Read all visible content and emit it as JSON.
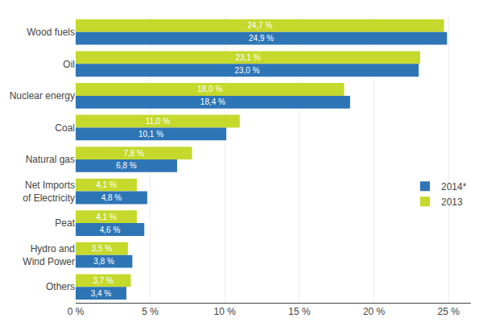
{
  "chart_data": {
    "type": "bar",
    "orientation": "horizontal",
    "categories": [
      "Wood fuels",
      "Oil",
      "Nuclear energy",
      "Coal",
      "Natural gas",
      "Net Imports\nof Electricity",
      "Peat",
      "Hydro and\nWind Power",
      "Others"
    ],
    "series": [
      {
        "name": "2014*",
        "color": "#2E75B6",
        "values": [
          24.9,
          23.0,
          18.4,
          10.1,
          6.8,
          4.8,
          4.6,
          3.8,
          3.4
        ],
        "value_labels": [
          "24,9 %",
          "23,0 %",
          "18,4 %",
          "10,1 %",
          "6,8 %",
          "4,8 %",
          "4,6 %",
          "3,8 %",
          "3,4 %"
        ]
      },
      {
        "name": "2013",
        "color": "#C5D92D",
        "values": [
          24.7,
          23.1,
          18.0,
          11.0,
          7.8,
          4.1,
          4.1,
          3.5,
          3.7
        ],
        "value_labels": [
          "24,7 %",
          "23,1 %",
          "18,0 %",
          "11,0 %",
          "7,8 %",
          "4,1 %",
          "4,1 %",
          "3,5 %",
          "3,7 %"
        ]
      }
    ],
    "xlim": [
      0,
      26.5
    ],
    "xticks": [
      {
        "value": 0,
        "label": "0 %"
      },
      {
        "value": 5,
        "label": "5 %"
      },
      {
        "value": 10,
        "label": "10 %"
      },
      {
        "value": 15,
        "label": "15 %"
      },
      {
        "value": 20,
        "label": "20 %"
      },
      {
        "value": 25,
        "label": "25 %"
      }
    ],
    "grid": true,
    "data_labels": true,
    "legend": "right"
  }
}
